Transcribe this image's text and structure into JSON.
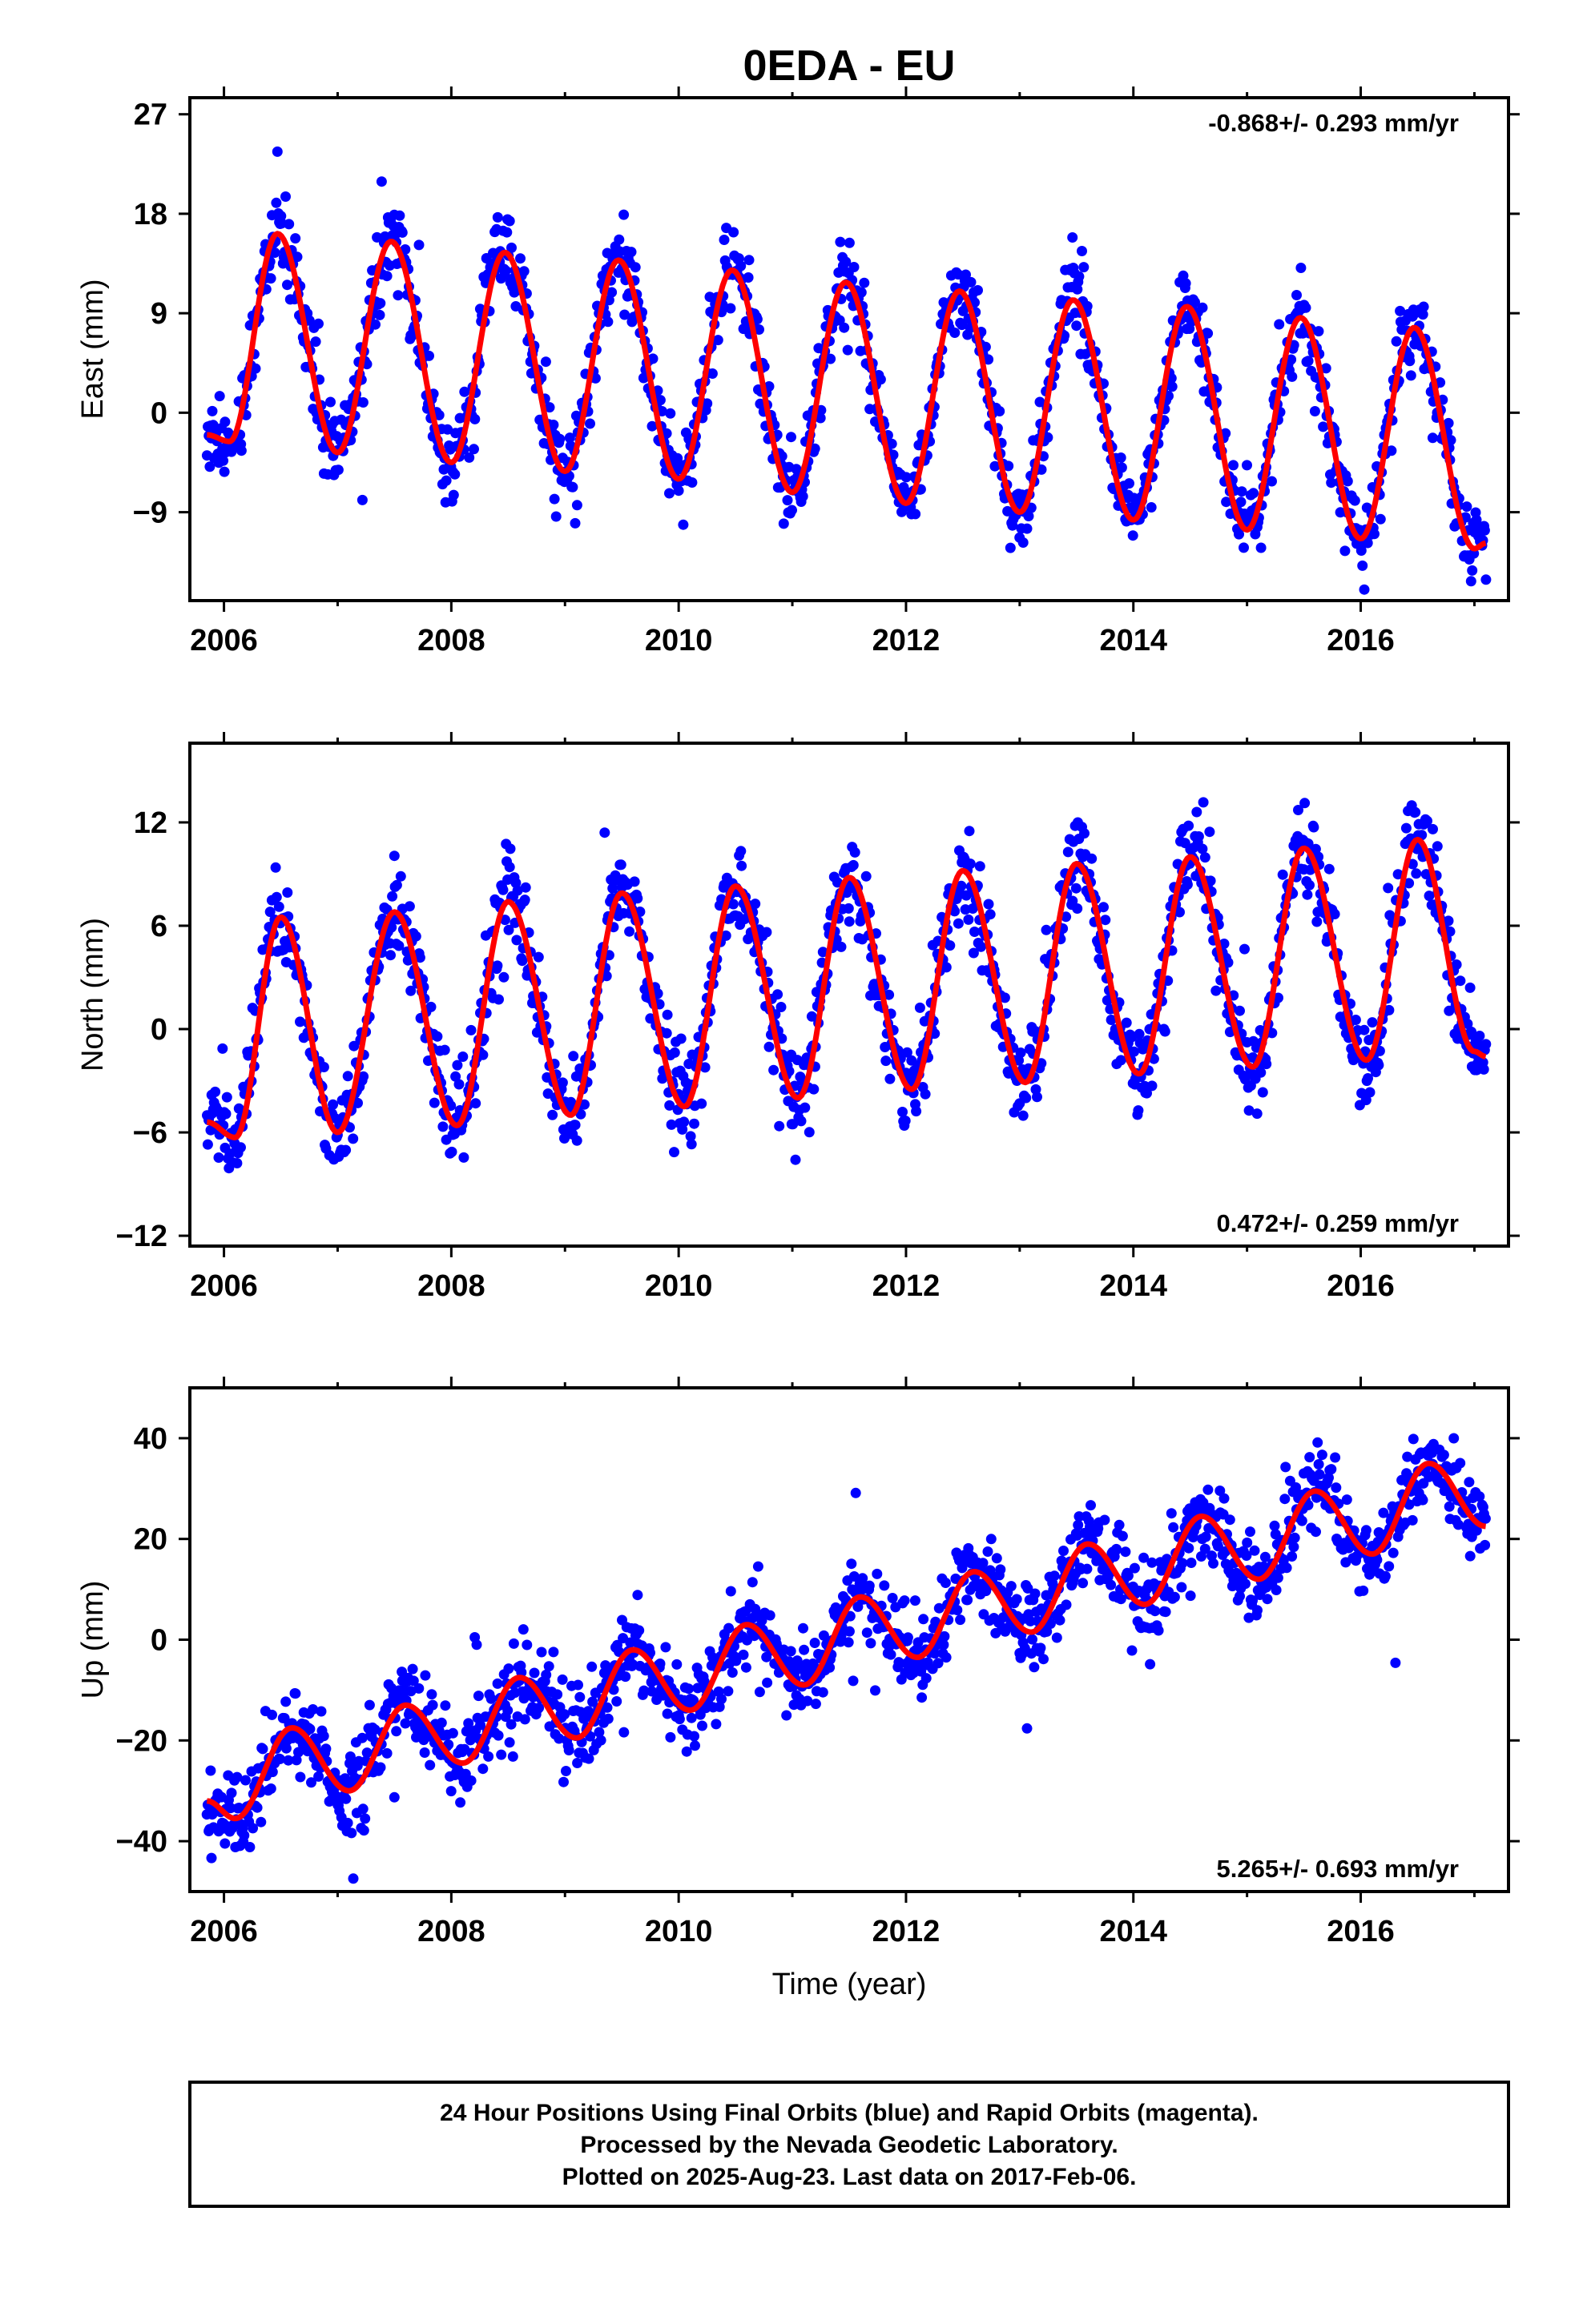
{
  "title": "0EDA - EU",
  "xlabel": "Time (year)",
  "colors": {
    "points": "#0000ff",
    "fit": "#ff0000",
    "frame": "#000000"
  },
  "caption": {
    "line1": "24 Hour Positions Using Final Orbits (blue) and Rapid Orbits (magenta).",
    "line2": "Processed by the Nevada Geodetic Laboratory.",
    "line3": "Plotted on 2025-Aug-23. Last data on 2017-Feb-06."
  },
  "chart_data": [
    {
      "type": "scatter",
      "name": "east",
      "ylabel": "East (mm)",
      "rate_label": "-0.868+/- 0.293 mm/yr",
      "rate_position": "top-right",
      "xlim": [
        2005.7,
        2017.3
      ],
      "ylim": [
        -17,
        28.5
      ],
      "xticks": [
        2006,
        2008,
        2010,
        2012,
        2014,
        2016
      ],
      "yticks": [
        27,
        18,
        9,
        0,
        -9
      ],
      "data_range": [
        2005.85,
        2017.1
      ],
      "series": [
        {
          "name": "",
          "kind": "points",
          "color": "#0000ff"
        },
        {
          "name": "",
          "kind": "fit",
          "color": "#ff0000"
        }
      ],
      "annual_extrema": [
        [
          2005.85,
          -2.0
        ],
        [
          2006.05,
          -2.6
        ],
        [
          2006.47,
          16.2
        ],
        [
          2007.0,
          -3.6
        ],
        [
          2007.47,
          15.5
        ],
        [
          2008.0,
          -4.5
        ],
        [
          2008.47,
          14.5
        ],
        [
          2009.0,
          -5.3
        ],
        [
          2009.47,
          13.8
        ],
        [
          2010.0,
          -6.0
        ],
        [
          2010.47,
          12.9
        ],
        [
          2011.0,
          -7.2
        ],
        [
          2011.47,
          11.8
        ],
        [
          2012.0,
          -8.2
        ],
        [
          2012.47,
          11.0
        ],
        [
          2013.0,
          -9.0
        ],
        [
          2013.47,
          10.2
        ],
        [
          2014.0,
          -9.7
        ],
        [
          2014.47,
          9.6
        ],
        [
          2015.0,
          -10.6
        ],
        [
          2015.47,
          8.6
        ],
        [
          2016.0,
          -11.4
        ],
        [
          2016.47,
          7.7
        ],
        [
          2017.0,
          -12.3
        ],
        [
          2017.1,
          -11.8
        ]
      ]
    },
    {
      "type": "scatter",
      "name": "north",
      "ylabel": "North (mm)",
      "rate_label": "0.472+/- 0.259 mm/yr",
      "rate_position": "bottom-right",
      "xlim": [
        2005.7,
        2017.3
      ],
      "ylim": [
        -12.6,
        16.6
      ],
      "xticks": [
        2006,
        2008,
        2010,
        2012,
        2014,
        2016
      ],
      "yticks": [
        12,
        6,
        0,
        -6,
        -12
      ],
      "data_range": [
        2005.85,
        2017.1
      ],
      "series": [
        {
          "name": "",
          "kind": "points",
          "color": "#0000ff"
        },
        {
          "name": "",
          "kind": "fit",
          "color": "#ff0000"
        }
      ],
      "annual_extrema": [
        [
          2005.85,
          -5.4
        ],
        [
          2006.1,
          -6.3
        ],
        [
          2006.5,
          6.5
        ],
        [
          2007.0,
          -6.0
        ],
        [
          2007.5,
          6.8
        ],
        [
          2008.05,
          -5.6
        ],
        [
          2008.5,
          7.4
        ],
        [
          2009.05,
          -5.0
        ],
        [
          2009.5,
          7.9
        ],
        [
          2010.05,
          -4.5
        ],
        [
          2010.5,
          8.3
        ],
        [
          2011.05,
          -4.0
        ],
        [
          2011.5,
          8.8
        ],
        [
          2012.05,
          -3.5
        ],
        [
          2012.5,
          9.2
        ],
        [
          2013.05,
          -3.1
        ],
        [
          2013.5,
          9.6
        ],
        [
          2014.05,
          -2.6
        ],
        [
          2014.5,
          10.0
        ],
        [
          2015.05,
          -2.2
        ],
        [
          2015.5,
          10.5
        ],
        [
          2016.05,
          -1.8
        ],
        [
          2016.5,
          11.0
        ],
        [
          2017.0,
          -1.3
        ],
        [
          2017.1,
          -1.6
        ]
      ]
    },
    {
      "type": "scatter",
      "name": "up",
      "ylabel": "Up (mm)",
      "rate_label": "5.265+/- 0.693 mm/yr",
      "rate_position": "bottom-right",
      "xlim": [
        2005.7,
        2017.3
      ],
      "ylim": [
        -50,
        50
      ],
      "xticks": [
        2006,
        2008,
        2010,
        2012,
        2014,
        2016
      ],
      "yticks": [
        40,
        20,
        0,
        -20,
        -40
      ],
      "data_range": [
        2005.85,
        2017.1
      ],
      "series": [
        {
          "name": "",
          "kind": "points",
          "color": "#0000ff"
        },
        {
          "name": "",
          "kind": "fit",
          "color": "#ff0000"
        }
      ],
      "annual_extrema": [
        [
          2005.85,
          -32
        ],
        [
          2006.1,
          -35.5
        ],
        [
          2006.6,
          -17.5
        ],
        [
          2007.1,
          -30.0
        ],
        [
          2007.6,
          -13.0
        ],
        [
          2008.1,
          -24.5
        ],
        [
          2008.6,
          -7.5
        ],
        [
          2009.1,
          -19.5
        ],
        [
          2009.6,
          -2.0
        ],
        [
          2010.1,
          -14.0
        ],
        [
          2010.6,
          3.0
        ],
        [
          2011.1,
          -9.0
        ],
        [
          2011.6,
          8.5
        ],
        [
          2012.1,
          -3.5
        ],
        [
          2012.6,
          13.5
        ],
        [
          2013.1,
          1.5
        ],
        [
          2013.6,
          19.0
        ],
        [
          2014.1,
          7.0
        ],
        [
          2014.6,
          24.5
        ],
        [
          2015.1,
          12.0
        ],
        [
          2015.6,
          29.5
        ],
        [
          2016.1,
          17.0
        ],
        [
          2016.6,
          35.0
        ],
        [
          2017.1,
          22.5
        ]
      ]
    }
  ]
}
